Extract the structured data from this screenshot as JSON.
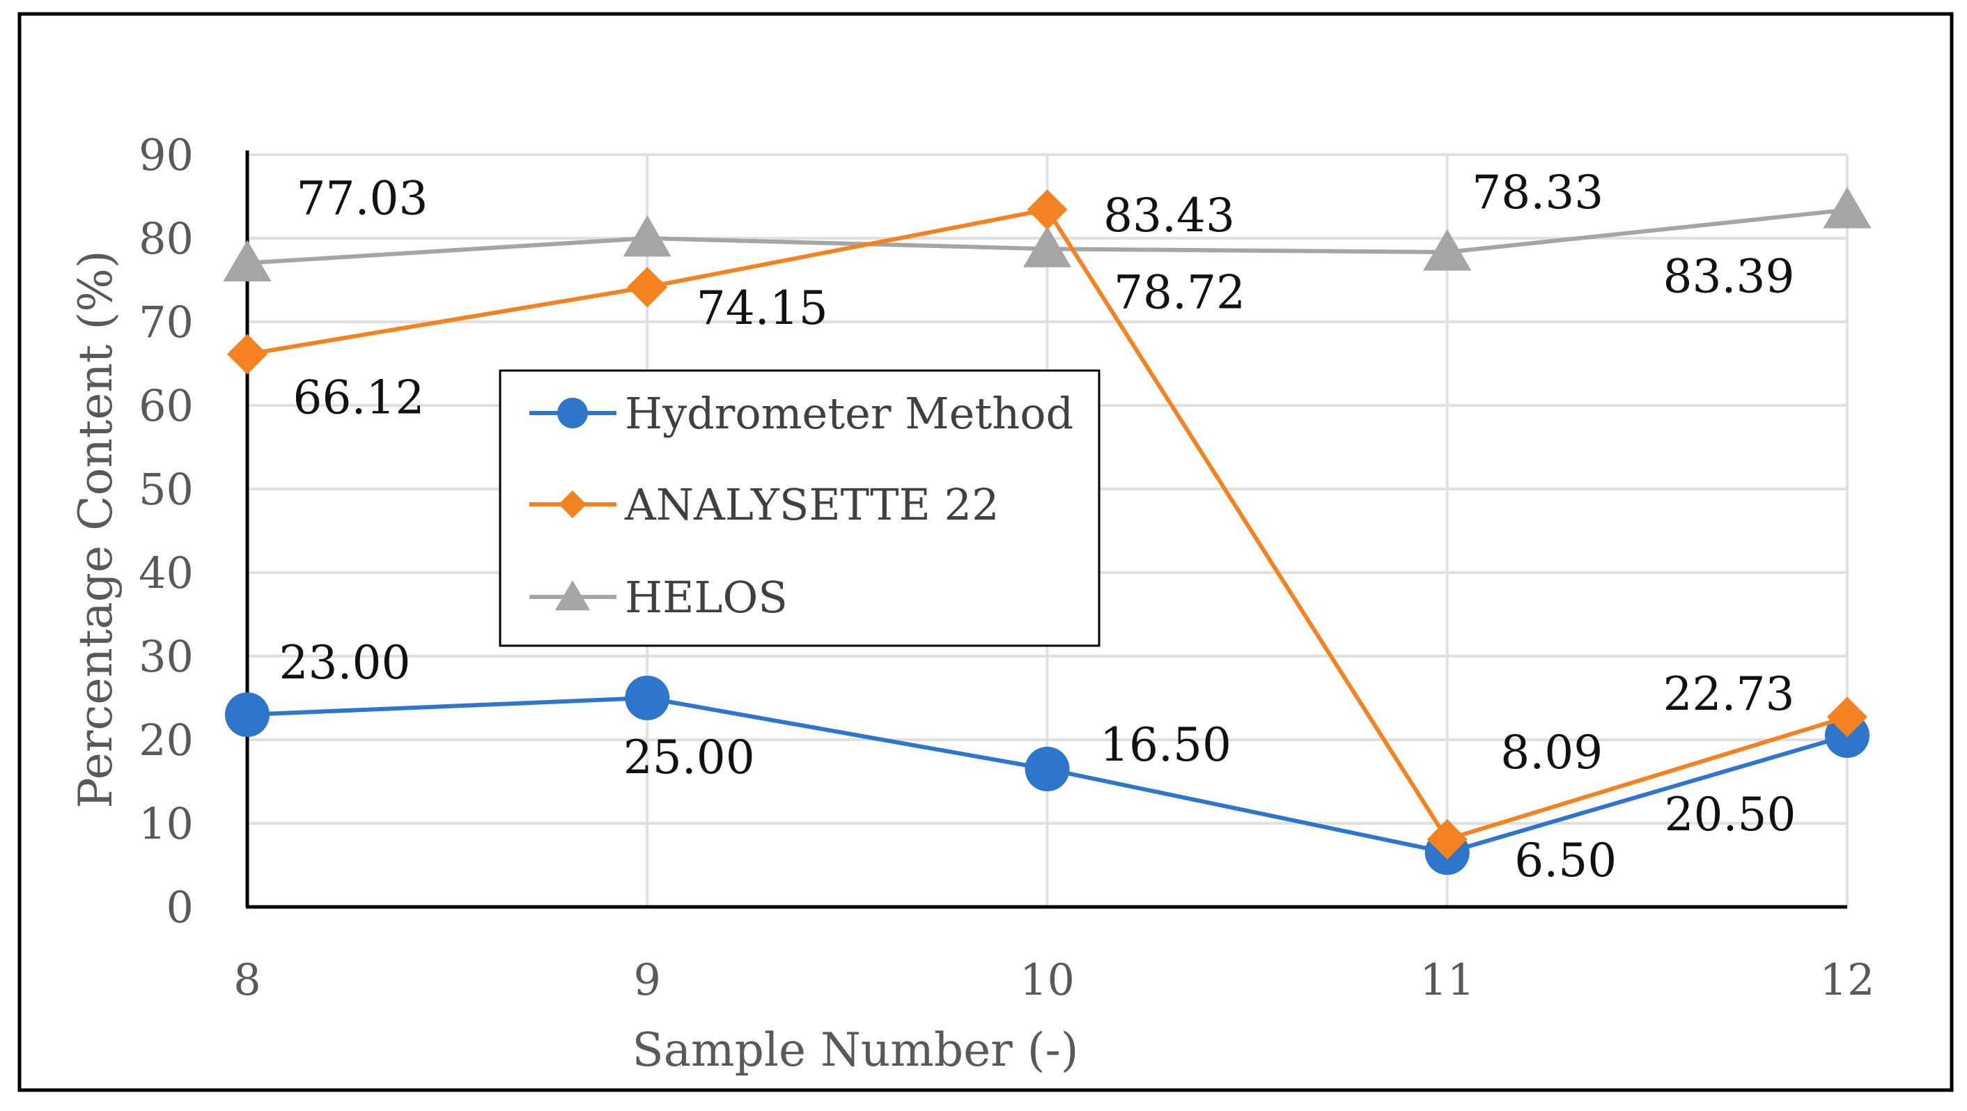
{
  "chart_data": {
    "type": "line",
    "title": "",
    "xlabel": "Sample Number (-)",
    "ylabel": "Percentage Content (%)",
    "x": [
      8,
      9,
      10,
      11,
      12
    ],
    "ylim": [
      0,
      90
    ],
    "yticks": [
      0,
      10,
      20,
      30,
      40,
      50,
      60,
      70,
      80,
      90
    ],
    "grid": true,
    "legend_position": "center-left",
    "series": [
      {
        "name": "Hydrometer Method",
        "color": "#2e75cc",
        "marker": "circle",
        "values": [
          23.0,
          25.0,
          16.5,
          6.5,
          20.5
        ],
        "labels": [
          "23.00",
          "25.00",
          "16.50",
          "6.50",
          "20.50"
        ]
      },
      {
        "name": "ANALYSETTE 22",
        "color": "#f58220",
        "marker": "diamond",
        "values": [
          66.12,
          74.15,
          83.43,
          8.09,
          22.73
        ],
        "labels": [
          "66.12",
          "74.15",
          "83.43",
          "8.09",
          "22.73"
        ]
      },
      {
        "name": "HELOS",
        "color": "#a5a5a5",
        "marker": "triangle",
        "values": [
          77.03,
          80.0,
          78.72,
          78.33,
          83.39
        ],
        "labels": [
          "77.03",
          "",
          "78.72",
          "78.33",
          "83.39"
        ]
      }
    ]
  }
}
